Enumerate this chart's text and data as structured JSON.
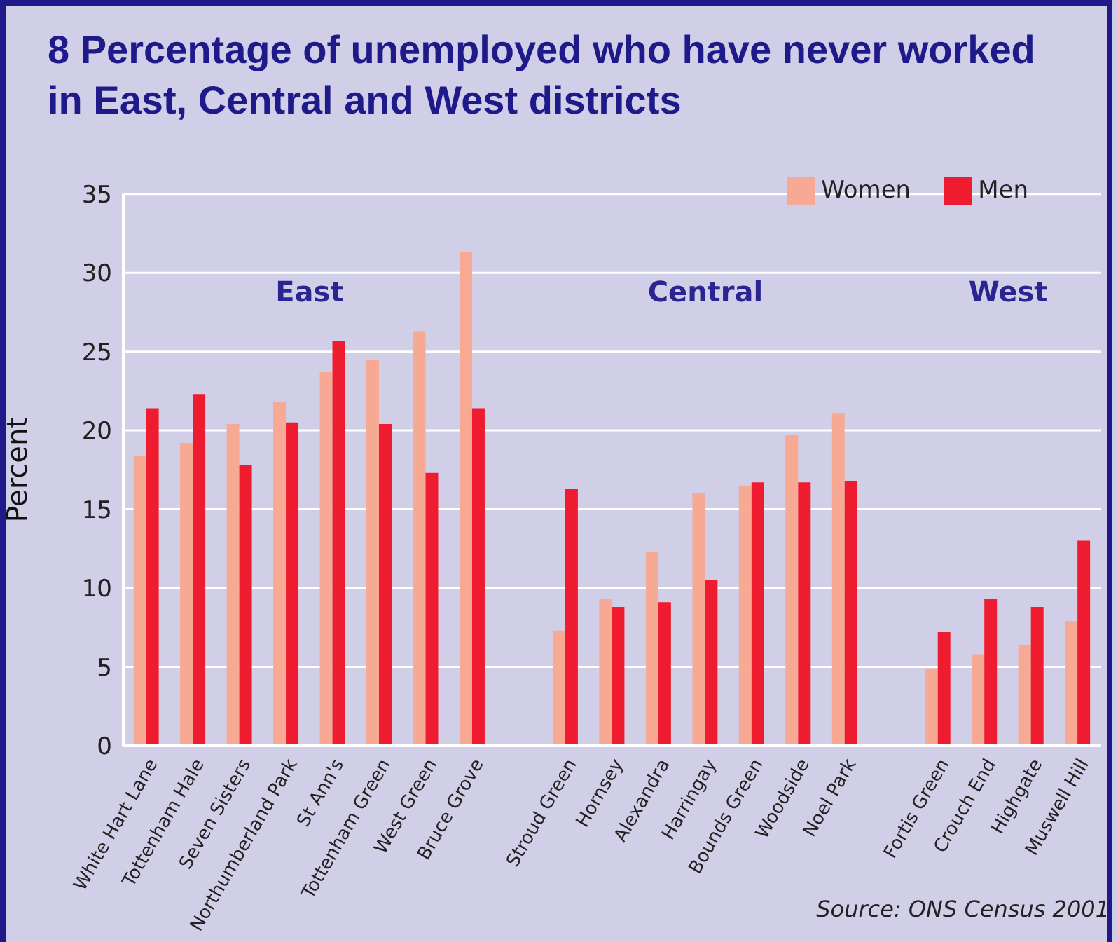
{
  "chart_data": {
    "type": "bar",
    "title": "8 Percentage of unemployed who have never worked in East, Central and West districts",
    "ylabel": "Percent",
    "categories": [
      "White Hart Lane",
      "Tottenham Hale",
      "Seven Sisters",
      "Northumberland Park",
      "St Ann's",
      "Tottenham Green",
      "West Green",
      "Bruce Grove",
      null,
      "Stroud Green",
      "Hornsey",
      "Alexandra",
      "Harringay",
      "Bounds Green",
      "Woodside",
      "Noel Park",
      null,
      "Fortis Green",
      "Crouch End",
      "Highgate",
      "Muswell Hill"
    ],
    "series": [
      {
        "name": "Women",
        "color": "#f8a994",
        "values": [
          18.4,
          19.2,
          20.4,
          21.8,
          23.7,
          24.5,
          26.3,
          31.3,
          null,
          7.3,
          9.3,
          12.3,
          16.0,
          16.5,
          19.7,
          21.1,
          null,
          4.9,
          5.8,
          6.4,
          7.9
        ]
      },
      {
        "name": "Men",
        "color": "#ee1c2e",
        "values": [
          21.4,
          22.3,
          17.8,
          20.5,
          25.7,
          20.4,
          17.3,
          21.4,
          null,
          16.3,
          8.8,
          9.1,
          10.5,
          16.7,
          16.7,
          16.8,
          null,
          7.2,
          9.3,
          8.8,
          13.0
        ]
      }
    ],
    "ylim": [
      0,
      35
    ],
    "yticks": [
      0,
      5,
      10,
      15,
      20,
      25,
      30,
      35
    ],
    "grid": "y",
    "legend": "top right",
    "annotations": [
      "East",
      "Central",
      "West",
      "Source: ONS Census 2001"
    ]
  }
}
